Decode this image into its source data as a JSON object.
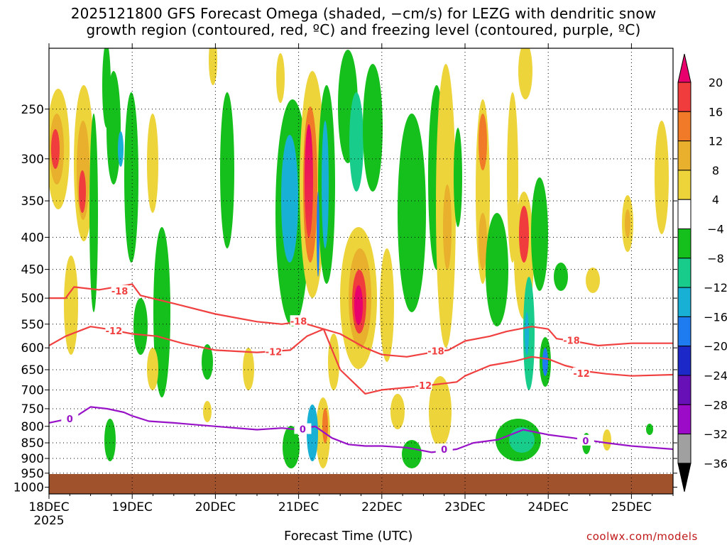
{
  "title_line1": "2025121800 GFS Forecast Omega (shaded, −cm/s) for LEZG with dendritic snow",
  "title_line2": "growth region (contoured, red, ºC) and freezing level (contoured, purple, ºC)",
  "credit": "coolwx.com/models",
  "chart_data": {
    "type": "heatmap",
    "xlabel": "Forecast Time (UTC)",
    "x_ticks": [
      "18DEC",
      "19DEC",
      "20DEC",
      "21DEC",
      "22DEC",
      "23DEC",
      "24DEC",
      "25DEC"
    ],
    "x_year_label": "2025",
    "y_ticks": [
      250,
      300,
      350,
      400,
      450,
      500,
      550,
      600,
      650,
      700,
      750,
      800,
      850,
      900,
      950,
      1000
    ],
    "ylim": [
      1000,
      200
    ],
    "xlim_days": [
      0,
      7.5
    ],
    "y_scale": "log",
    "grid": "dotted",
    "colorbar": {
      "labels": [
        "20",
        "16",
        "12",
        "8",
        "4",
        "−4",
        "−8",
        "−12",
        "−16",
        "−20",
        "−24",
        "−28",
        "−32",
        "−36"
      ],
      "colors": [
        "#e8006c",
        "#f03c3c",
        "#f07a28",
        "#e8b02c",
        "#ecd43a",
        "#ffffff",
        "#16c01c",
        "#18cc8c",
        "#18b0d4",
        "#1e7cf0",
        "#1c28c8",
        "#6810b8",
        "#9c0cc8",
        "#a0a0a0",
        "#000000"
      ]
    },
    "contour_series": [
      {
        "name": "-18",
        "color": "#f04040",
        "x": [
          0,
          0.2,
          0.3,
          0.6,
          0.8,
          1.0,
          1.1,
          1.5,
          2.0,
          2.5,
          2.8,
          3.0,
          3.3,
          3.5,
          3.8,
          4.0,
          4.3,
          4.6,
          4.8,
          5.0,
          5.3,
          5.5,
          5.8,
          6.0,
          6.1,
          6.3,
          6.6,
          7.0,
          7.5
        ],
        "y": [
          500,
          500,
          480,
          485,
          480,
          475,
          495,
          510,
          530,
          545,
          550,
          545,
          560,
          570,
          600,
          615,
          620,
          610,
          605,
          585,
          575,
          565,
          555,
          560,
          580,
          585,
          595,
          590,
          590
        ]
      },
      {
        "name": "-12",
        "color": "#f04040",
        "x": [
          0,
          0.2,
          0.5,
          0.7,
          1.0,
          1.3,
          1.6,
          2.0,
          2.5,
          2.9,
          3.1,
          3.3,
          3.5,
          3.8,
          4.0,
          4.5,
          4.9,
          5.0,
          5.3,
          5.6,
          5.8,
          6.0,
          6.2,
          6.5,
          6.7,
          7.0,
          7.5
        ],
        "y": [
          595,
          575,
          555,
          560,
          570,
          575,
          590,
          605,
          610,
          605,
          575,
          560,
          650,
          710,
          700,
          690,
          680,
          665,
          640,
          630,
          620,
          625,
          640,
          655,
          660,
          665,
          662
        ]
      },
      {
        "name": "0",
        "color": "#9812c8",
        "x": [
          0,
          0.3,
          0.5,
          0.7,
          0.9,
          1.0,
          1.2,
          1.5,
          2.0,
          2.5,
          2.8,
          3.0,
          3.2,
          3.4,
          3.6,
          3.8,
          4.0,
          4.3,
          4.6,
          4.9,
          5.1,
          5.4,
          5.7,
          6.0,
          6.3,
          6.7,
          7.0,
          7.5
        ],
        "y": [
          790,
          775,
          745,
          750,
          760,
          770,
          785,
          790,
          800,
          810,
          805,
          810,
          800,
          835,
          855,
          860,
          860,
          865,
          880,
          870,
          850,
          840,
          810,
          825,
          835,
          850,
          860,
          870
        ]
      }
    ]
  }
}
